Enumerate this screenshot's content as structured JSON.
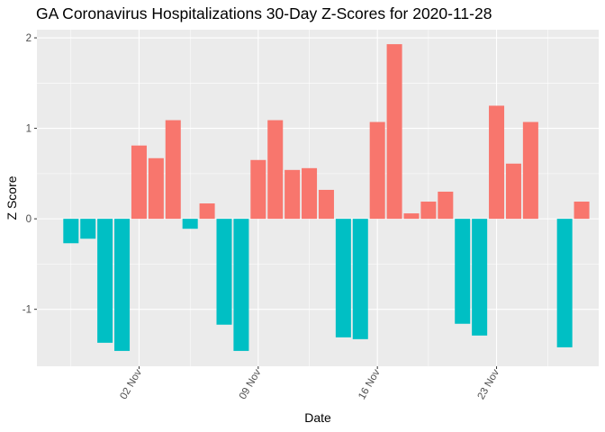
{
  "chart_data": {
    "type": "bar",
    "title": "GA Coronavirus Hospitalizations 30-Day Z-Scores for 2020-11-28",
    "xlabel": "Date",
    "ylabel": "Z Score",
    "x": [
      "2020-10-29",
      "2020-10-30",
      "2020-10-31",
      "2020-11-01",
      "2020-11-02",
      "2020-11-03",
      "2020-11-04",
      "2020-11-05",
      "2020-11-06",
      "2020-11-07",
      "2020-11-08",
      "2020-11-09",
      "2020-11-10",
      "2020-11-11",
      "2020-11-12",
      "2020-11-13",
      "2020-11-14",
      "2020-11-15",
      "2020-11-16",
      "2020-11-17",
      "2020-11-18",
      "2020-11-19",
      "2020-11-20",
      "2020-11-21",
      "2020-11-22",
      "2020-11-23",
      "2020-11-24",
      "2020-11-25",
      "2020-11-26",
      "2020-11-27",
      "2020-11-28"
    ],
    "values": [
      -0.27,
      -0.22,
      -1.37,
      -1.46,
      0.81,
      0.67,
      1.09,
      -0.11,
      0.17,
      -1.17,
      -1.46,
      0.65,
      1.09,
      0.54,
      0.56,
      0.32,
      -1.31,
      -1.33,
      1.07,
      1.93,
      0.06,
      0.19,
      0.3,
      -1.16,
      -1.29,
      1.25,
      0.61,
      1.07,
      null,
      -1.42,
      0.19
    ],
    "ylim": [
      -1.63,
      2.09
    ],
    "y_ticks": [
      -1,
      0,
      1,
      2
    ],
    "y_tick_labels": [
      "-1",
      "0",
      "1",
      "2"
    ],
    "x_ticks": [
      "2020-11-02",
      "2020-11-09",
      "2020-11-16",
      "2020-11-23"
    ],
    "x_tick_labels": [
      "02 Nov",
      "09 Nov",
      "16 Nov",
      "23 Nov"
    ],
    "x_minor_ticks": [
      "2020-10-29",
      "2020-11-05",
      "2020-11-12",
      "2020-11-19",
      "2020-11-26"
    ],
    "xlim": [
      "2020-10-27",
      "2020-11-29"
    ],
    "grid": true,
    "legend": "none",
    "colors": {
      "positive": "#F8766D",
      "negative": "#00BFC4",
      "panel": "#EBEBEB",
      "grid": "#FFFFFF",
      "tick_text": "#4D4D4D",
      "tick_mark": "#333333"
    }
  }
}
